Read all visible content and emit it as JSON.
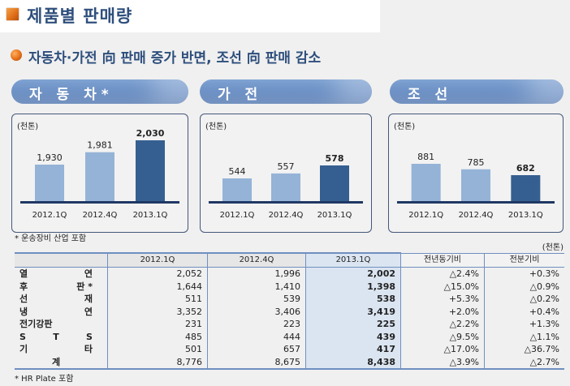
{
  "header": {
    "title": "제품별 판매량",
    "subtitle": "자동차·가전 向 판매 증가 반면, 조선 向 판매 감소",
    "accent_color": "#e2721c",
    "title_color": "#2e4f7c"
  },
  "chart_data": [
    {
      "type": "bar",
      "title": "자 동 차*",
      "unit": "(천톤)",
      "categories": [
        "2012.1Q",
        "2012.4Q",
        "2013.1Q"
      ],
      "values": [
        1930,
        1981,
        2030
      ],
      "value_labels": [
        "1,930",
        "1,981",
        "2,030"
      ],
      "highlight_index": 2,
      "colors": {
        "normal": "#95b3d7",
        "highlight": "#365f91",
        "baseline": "#1f3864"
      }
    },
    {
      "type": "bar",
      "title": "가 전",
      "unit": "(천톤)",
      "categories": [
        "2012.1Q",
        "2012.4Q",
        "2013.1Q"
      ],
      "values": [
        544,
        557,
        578
      ],
      "value_labels": [
        "544",
        "557",
        "578"
      ],
      "highlight_index": 2,
      "colors": {
        "normal": "#95b3d7",
        "highlight": "#365f91",
        "baseline": "#1f3864"
      }
    },
    {
      "type": "bar",
      "title": "조 선",
      "unit": "(천톤)",
      "categories": [
        "2012.1Q",
        "2012.4Q",
        "2013.1Q"
      ],
      "values": [
        881,
        785,
        682
      ],
      "value_labels": [
        "881",
        "785",
        "682"
      ],
      "highlight_index": 2,
      "colors": {
        "normal": "#95b3d7",
        "highlight": "#365f91",
        "baseline": "#1f3864"
      }
    }
  ],
  "footnote_charts": "* 운송장비 산업 포함",
  "table": {
    "unit": "(천톤)",
    "columns": [
      "",
      "2012.1Q",
      "2012.4Q",
      "2013.1Q",
      "전년동기비",
      "전분기비"
    ],
    "rows": [
      {
        "label": [
          "열",
          "연"
        ],
        "v1": "2,052",
        "v2": "1,996",
        "v3": "2,002",
        "yoy": "△2.4%",
        "qoq": "+0.3%"
      },
      {
        "label": [
          "후",
          "판 *"
        ],
        "v1": "1,644",
        "v2": "1,410",
        "v3": "1,398",
        "yoy": "△15.0%",
        "qoq": "△0.9%"
      },
      {
        "label": [
          "선",
          "재"
        ],
        "v1": "511",
        "v2": "539",
        "v3": "538",
        "yoy": "+5.3%",
        "qoq": "△0.2%"
      },
      {
        "label": [
          "냉",
          "연"
        ],
        "v1": "3,352",
        "v2": "3,406",
        "v3": "3,419",
        "yoy": "+2.0%",
        "qoq": "+0.4%"
      },
      {
        "label": [
          "전기강판"
        ],
        "v1": "231",
        "v2": "223",
        "v3": "225",
        "yoy": "△2.2%",
        "qoq": "+1.3%"
      },
      {
        "label": [
          "S",
          "T",
          "S"
        ],
        "v1": "485",
        "v2": "444",
        "v3": "439",
        "yoy": "△9.5%",
        "qoq": "△1.1%"
      },
      {
        "label": [
          "기",
          "타"
        ],
        "v1": "501",
        "v2": "657",
        "v3": "417",
        "yoy": "△17.0%",
        "qoq": "△36.7%"
      },
      {
        "label": [
          "계"
        ],
        "v1": "8,776",
        "v2": "8,675",
        "v3": "8,438",
        "yoy": "△3.9%",
        "qoq": "△2.7%"
      }
    ]
  },
  "footnote_table": "* HR Plate 포함"
}
